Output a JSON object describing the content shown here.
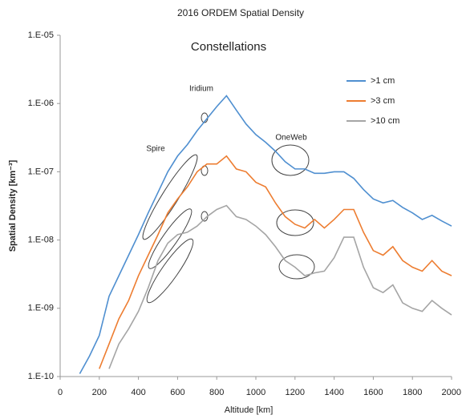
{
  "chart_data": {
    "type": "line",
    "title": "2016 ORDEM Spatial Density",
    "xlabel": "Altitude [km]",
    "ylabel": "Spatial Density [km⁻³]",
    "annotations": [
      "Constellations",
      "Spire",
      "Iridium",
      "OneWeb"
    ],
    "y_scale": "log",
    "legend": "upper right",
    "xlim": [
      0,
      2000
    ],
    "xticks": [
      0,
      200,
      400,
      600,
      800,
      1000,
      1200,
      1400,
      1600,
      1800,
      2000
    ],
    "ylim": [
      1e-10,
      1e-05
    ],
    "yticks": [
      {
        "value": 1e-10,
        "label": "1.E-10"
      },
      {
        "value": 1e-09,
        "label": "1.E-09"
      },
      {
        "value": 1e-08,
        "label": "1.E-08"
      },
      {
        "value": 1e-07,
        "label": "1.E-07"
      },
      {
        "value": 1e-06,
        "label": "1.E-06"
      },
      {
        "value": 1e-05,
        "label": "1.E-05"
      }
    ],
    "x": [
      100,
      150,
      200,
      250,
      300,
      350,
      400,
      450,
      500,
      550,
      600,
      650,
      700,
      750,
      800,
      850,
      900,
      950,
      1000,
      1050,
      1100,
      1150,
      1200,
      1250,
      1300,
      1350,
      1400,
      1450,
      1500,
      1550,
      1600,
      1650,
      1700,
      1750,
      1800,
      1850,
      1900,
      1950,
      2000
    ],
    "series": [
      {
        "name": ">1 cm",
        "color": "#4f8fd0",
        "values": [
          1.1e-10,
          2e-10,
          4e-10,
          1.5e-09,
          3e-09,
          6e-09,
          1.2e-08,
          2.5e-08,
          5e-08,
          1e-07,
          1.7e-07,
          2.5e-07,
          4e-07,
          6e-07,
          9e-07,
          1.3e-06,
          8e-07,
          5e-07,
          3.5e-07,
          2.7e-07,
          2e-07,
          1.4e-07,
          1.1e-07,
          1.1e-07,
          9.5e-08,
          9.5e-08,
          1e-07,
          1e-07,
          8e-08,
          5.5e-08,
          4e-08,
          3.5e-08,
          3.8e-08,
          3e-08,
          2.5e-08,
          2e-08,
          2.3e-08,
          1.9e-08,
          1.6e-08
        ]
      },
      {
        "name": ">3 cm",
        "color": "#ed7d31",
        "values": [
          null,
          null,
          1.3e-10,
          3e-10,
          7e-10,
          1.3e-09,
          3e-09,
          6e-09,
          1.2e-08,
          2.5e-08,
          4e-08,
          6e-08,
          1e-07,
          1.3e-07,
          1.3e-07,
          1.7e-07,
          1.1e-07,
          1e-07,
          7e-08,
          6e-08,
          3.5e-08,
          2.2e-08,
          1.7e-08,
          1.5e-08,
          2e-08,
          1.5e-08,
          2e-08,
          2.8e-08,
          2.8e-08,
          1.3e-08,
          7e-09,
          6e-09,
          8e-09,
          5e-09,
          4e-09,
          3.5e-09,
          5e-09,
          3.5e-09,
          3e-09
        ]
      },
      {
        "name": ">10 cm",
        "color": "#a5a5a5",
        "values": [
          null,
          null,
          null,
          1.3e-10,
          3e-10,
          5e-10,
          9e-10,
          2e-09,
          5e-09,
          9e-09,
          1.2e-08,
          1.3e-08,
          1.6e-08,
          2.2e-08,
          2.8e-08,
          3.2e-08,
          2.2e-08,
          2e-08,
          1.6e-08,
          1.2e-08,
          8e-09,
          5e-09,
          4e-09,
          3e-09,
          3.3e-09,
          3.5e-09,
          5.5e-09,
          1.1e-08,
          1.1e-08,
          4e-09,
          2e-09,
          1.7e-09,
          2.2e-09,
          1.2e-09,
          1e-09,
          9e-10,
          1.3e-09,
          1e-09,
          8e-10
        ]
      }
    ]
  }
}
